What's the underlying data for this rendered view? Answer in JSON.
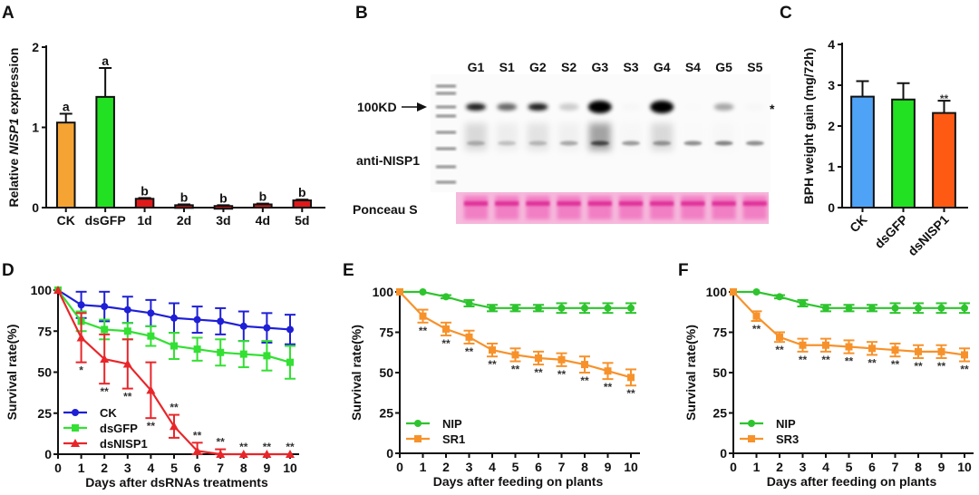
{
  "panels": {
    "A": "A",
    "B": "B",
    "C": "C",
    "D": "D",
    "E": "E",
    "F": "F"
  },
  "chart_data": [
    {
      "id": "A",
      "type": "bar",
      "title": "",
      "ylabel_prefix": "Relative ",
      "ylabel_italic": "NISP1",
      "ylabel_suffix": " expression",
      "xlabel": "",
      "ylim": [
        0,
        2
      ],
      "yticks": [
        0,
        1,
        2
      ],
      "categories": [
        "CK",
        "dsGFP",
        "1d",
        "2d",
        "3d",
        "4d",
        "5d"
      ],
      "values": [
        1.06,
        1.38,
        0.11,
        0.03,
        0.02,
        0.04,
        0.09
      ],
      "errors": [
        0.11,
        0.36,
        0.01,
        0.01,
        0.01,
        0.01,
        0.01
      ],
      "colors": [
        "#f5a433",
        "#22e022",
        "#e01a1a",
        "#e01a1a",
        "#e01a1a",
        "#e01a1a",
        "#e01a1a"
      ],
      "letters": [
        "a",
        "a",
        "b",
        "b",
        "b",
        "b",
        "b"
      ]
    },
    {
      "id": "C",
      "type": "bar",
      "title": "",
      "ylabel": "BPH weight gain (mg/72h)",
      "xlabel": "",
      "ylim": [
        0,
        4
      ],
      "yticks": [
        0,
        1,
        2,
        3,
        4
      ],
      "categories": [
        "CK",
        "dsGFP",
        "dsNISP1"
      ],
      "values": [
        2.72,
        2.65,
        2.32
      ],
      "errors": [
        0.38,
        0.4,
        0.3
      ],
      "colors": [
        "#4fa3f7",
        "#22e022",
        "#ff5a14"
      ],
      "significance": [
        "",
        "",
        "**"
      ]
    },
    {
      "id": "D",
      "type": "line",
      "ylabel": "Survival rate(%)",
      "xlabel": "Days after dsRNAs treatments",
      "ylim": [
        0,
        100
      ],
      "yticks": [
        0,
        25,
        50,
        75,
        100
      ],
      "x": [
        0,
        1,
        2,
        3,
        4,
        5,
        6,
        7,
        8,
        9,
        10
      ],
      "legend_position": "bottom-left",
      "series": [
        {
          "name": "CK",
          "color": "#1f1fd6",
          "marker": "circle",
          "values": [
            100,
            91,
            90,
            88,
            86,
            83,
            82,
            81,
            78,
            77,
            76
          ],
          "errors": [
            0,
            8,
            9,
            8,
            8,
            9,
            8,
            8,
            9,
            9,
            9
          ]
        },
        {
          "name": "dsGFP",
          "color": "#33e033",
          "marker": "square",
          "values": [
            100,
            81,
            76,
            75,
            72,
            66,
            64,
            62,
            61,
            60,
            56
          ],
          "errors": [
            0,
            6,
            6,
            5,
            6,
            8,
            7,
            8,
            8,
            9,
            10
          ]
        },
        {
          "name": "dsNISP1",
          "color": "#e8262a",
          "marker": "triangle",
          "values": [
            100,
            71,
            58,
            55,
            39,
            17,
            2,
            0,
            0,
            0,
            0
          ],
          "errors": [
            0,
            15,
            15,
            15,
            17,
            7,
            5,
            3,
            0,
            0,
            0
          ]
        }
      ],
      "significance": [
        "",
        "*",
        "**",
        "**",
        "**",
        "**",
        "**",
        "**",
        "**",
        "**",
        "**"
      ]
    },
    {
      "id": "E",
      "type": "line",
      "ylabel": "Survival rate(%)",
      "xlabel": "Days after feeding on plants",
      "ylim": [
        0,
        100
      ],
      "yticks": [
        0,
        25,
        50,
        75,
        100
      ],
      "x": [
        0,
        1,
        2,
        3,
        4,
        5,
        6,
        7,
        8,
        9,
        10
      ],
      "legend_position": "bottom-left",
      "series": [
        {
          "name": "NIP",
          "color": "#2ec42e",
          "marker": "circle",
          "values": [
            100,
            100,
            97,
            93,
            90,
            90,
            90,
            90,
            90,
            90,
            90
          ],
          "errors": [
            0,
            0,
            1,
            2,
            2,
            2,
            2,
            3,
            3,
            3,
            3
          ]
        },
        {
          "name": "SR1",
          "color": "#f7922b",
          "marker": "square",
          "values": [
            100,
            85,
            77,
            72,
            64,
            61,
            59,
            58,
            55,
            51,
            47
          ],
          "errors": [
            0,
            4,
            4,
            4,
            4,
            4,
            4,
            4,
            5,
            5,
            5
          ]
        }
      ],
      "significance": [
        "",
        "**",
        "**",
        "**",
        "**",
        "**",
        "**",
        "**",
        "**",
        "**",
        "**"
      ]
    },
    {
      "id": "F",
      "type": "line",
      "ylabel": "Survival rate(%)",
      "xlabel": "Days after feeding on plants",
      "ylim": [
        0,
        100
      ],
      "yticks": [
        0,
        25,
        50,
        75,
        100
      ],
      "x": [
        0,
        1,
        2,
        3,
        4,
        5,
        6,
        7,
        8,
        9,
        10
      ],
      "legend_position": "bottom-left",
      "series": [
        {
          "name": "NIP",
          "color": "#2ec42e",
          "marker": "circle",
          "values": [
            100,
            100,
            97,
            93,
            90,
            90,
            90,
            90,
            90,
            90,
            90
          ],
          "errors": [
            0,
            0,
            1,
            2,
            2,
            2,
            2,
            3,
            3,
            3,
            3
          ]
        },
        {
          "name": "SR3",
          "color": "#f7922b",
          "marker": "square",
          "values": [
            100,
            85,
            72,
            67,
            67,
            66,
            65,
            64,
            63,
            63,
            61
          ],
          "errors": [
            0,
            3,
            3,
            4,
            4,
            4,
            4,
            4,
            4,
            4,
            4
          ]
        }
      ],
      "significance": [
        "",
        "**",
        "**",
        "**",
        "**",
        "**",
        "**",
        "**",
        "**",
        "**",
        "**"
      ]
    }
  ],
  "blot": {
    "lanes": [
      "G1",
      "S1",
      "G2",
      "S2",
      "G3",
      "S3",
      "G4",
      "S4",
      "G5",
      "S5"
    ],
    "marker_label": "100KD",
    "antibody_label": "anti-NISP1",
    "loading_label": "Ponceau S",
    "asterisk": "*",
    "band_100kd_intensity": [
      0.9,
      0.6,
      0.9,
      0.2,
      1.0,
      0.03,
      1.0,
      0.02,
      0.35,
      0.03
    ],
    "lower_band_intensity": [
      0.35,
      0.25,
      0.3,
      0.35,
      0.75,
      0.4,
      0.45,
      0.45,
      0.5,
      0.45
    ],
    "smear_intensity": [
      0.25,
      0.12,
      0.18,
      0.1,
      0.6,
      0.05,
      0.25,
      0.03,
      0.05,
      0.03
    ]
  }
}
